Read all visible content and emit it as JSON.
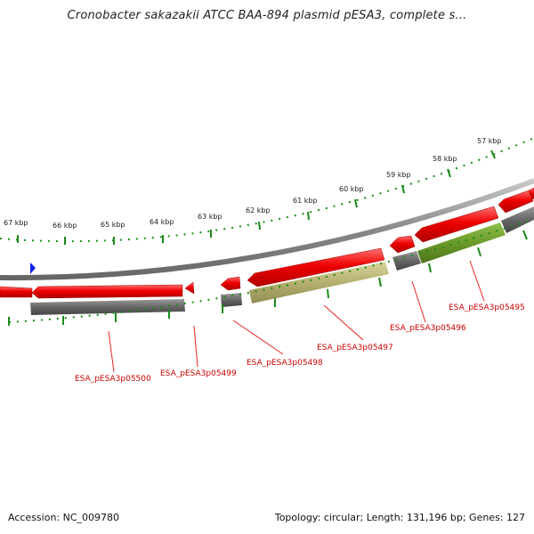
{
  "title": "Cronobacter sakazakii ATCC BAA-894 plasmid pESA3, complete s...",
  "scale_labels": [
    "67 kbp",
    "66 kbp",
    "65 kbp",
    "64 kbp",
    "63 kbp",
    "62 kbp",
    "61 kbp",
    "60 kbp",
    "59 kbp",
    "58 kbp",
    "57 kbp"
  ],
  "gene_labels": [
    "ESA_pESA3p05500",
    "ESA_pESA3p05499",
    "ESA_pESA3p05498",
    "ESA_pESA3p05497",
    "ESA_pESA3p05496",
    "ESA_pESA3p05495"
  ],
  "footer": {
    "accession": "Accession: NC_009780",
    "summary": "Topology: circular; Length: 131,196 bp; Genes: 127"
  },
  "colors": {
    "forward_gene": "#ee0000",
    "reverse_gene_gray": "#666666",
    "reverse_gene_khaki": "#b5b070",
    "reverse_gene_olive": "#6b9a2a",
    "backbone": "#8a8a8a",
    "tick": "#1a8a1a",
    "label": "#cc0000",
    "origin_marker": "#1020ee"
  },
  "icons": {
    "origin": "origin-marker-icon"
  }
}
